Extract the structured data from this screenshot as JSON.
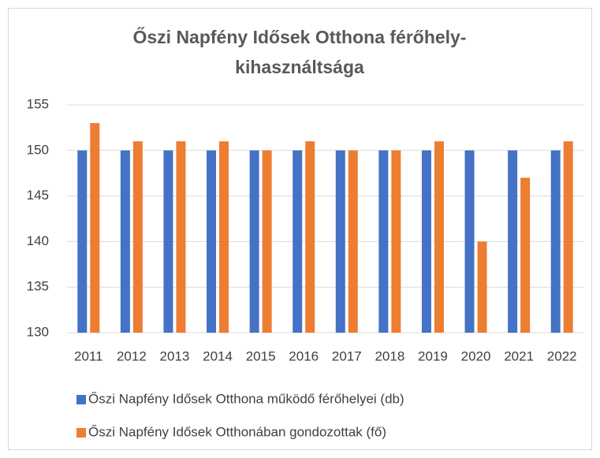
{
  "chart_data": {
    "type": "bar",
    "title": "Őszi Napfény Idősek Otthona férőhely-kihasználtsága",
    "categories": [
      "2011",
      "2012",
      "2013",
      "2014",
      "2015",
      "2016",
      "2017",
      "2018",
      "2019",
      "2020",
      "2021",
      "2022"
    ],
    "series": [
      {
        "name": "Őszi Napfény Idősek Otthona működő férőhelyei (db)",
        "color": "#4472c4",
        "values": [
          150,
          150,
          150,
          150,
          150,
          150,
          150,
          150,
          150,
          150,
          150,
          150
        ]
      },
      {
        "name": "Őszi Napfény Idősek Otthonában gondozottak (fő)",
        "color": "#ed7d31",
        "values": [
          153,
          151,
          151,
          151,
          150,
          151,
          150,
          150,
          151,
          140,
          147,
          151
        ]
      }
    ],
    "ylim": [
      130,
      155
    ],
    "yticks": [
      130,
      135,
      140,
      145,
      150,
      155
    ],
    "grid": true,
    "legend": "bottom"
  }
}
